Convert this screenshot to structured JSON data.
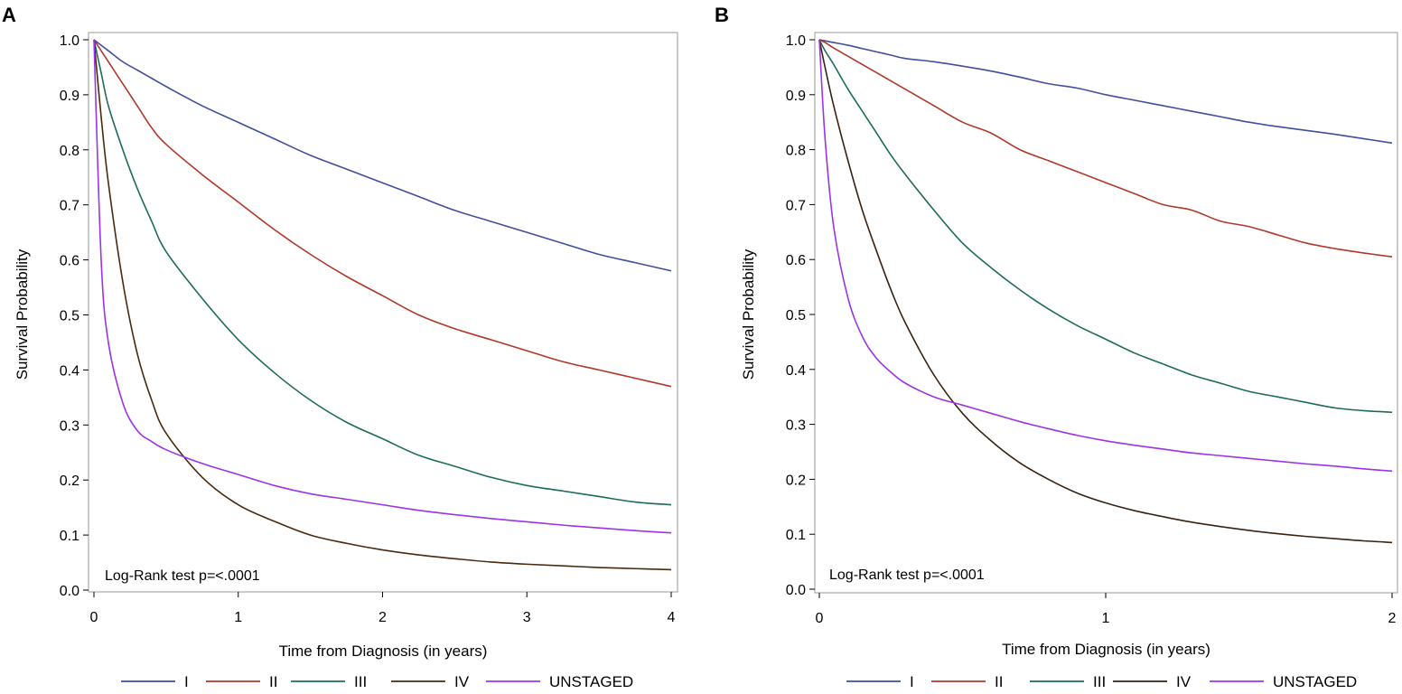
{
  "chart_data": [
    {
      "type": "line",
      "panel": "A",
      "title": "",
      "xlabel": "Time from Diagnosis (in years)",
      "ylabel": "Survival Probability",
      "xlim": [
        0,
        4
      ],
      "ylim": [
        0,
        1
      ],
      "xticks": [
        "0",
        "1",
        "2",
        "3",
        "4"
      ],
      "yticks": [
        "0.0",
        "0.1",
        "0.2",
        "0.3",
        "0.4",
        "0.5",
        "0.6",
        "0.7",
        "0.8",
        "0.9",
        "1.0"
      ],
      "annotation": "Log-Rank test p=<.0001",
      "x": [
        0,
        0.05,
        0.1,
        0.2,
        0.3,
        0.4,
        0.5,
        0.75,
        1,
        1.25,
        1.5,
        1.75,
        2,
        2.25,
        2.5,
        2.75,
        3,
        3.25,
        3.5,
        3.75,
        4
      ],
      "series": [
        {
          "name": "I",
          "color": "#3f4f9b",
          "values": [
            1.0,
            0.99,
            0.98,
            0.96,
            0.945,
            0.93,
            0.915,
            0.88,
            0.85,
            0.82,
            0.79,
            0.765,
            0.74,
            0.715,
            0.69,
            0.67,
            0.65,
            0.63,
            0.61,
            0.595,
            0.58
          ]
        },
        {
          "name": "II",
          "color": "#b0382a",
          "values": [
            1.0,
            0.98,
            0.96,
            0.92,
            0.88,
            0.84,
            0.81,
            0.755,
            0.705,
            0.655,
            0.61,
            0.57,
            0.535,
            0.5,
            0.475,
            0.455,
            0.435,
            0.415,
            0.4,
            0.385,
            0.37
          ]
        },
        {
          "name": "III",
          "color": "#1e6b5c",
          "values": [
            1.0,
            0.94,
            0.88,
            0.8,
            0.73,
            0.67,
            0.615,
            0.53,
            0.455,
            0.395,
            0.345,
            0.305,
            0.275,
            0.245,
            0.225,
            0.205,
            0.19,
            0.18,
            0.17,
            0.16,
            0.155
          ]
        },
        {
          "name": "IV",
          "color": "#4a2a0e",
          "values": [
            1.0,
            0.86,
            0.74,
            0.56,
            0.43,
            0.345,
            0.285,
            0.205,
            0.155,
            0.125,
            0.1,
            0.085,
            0.073,
            0.064,
            0.057,
            0.051,
            0.047,
            0.044,
            0.041,
            0.039,
            0.037
          ]
        },
        {
          "name": "UNSTAGED",
          "color": "#9b34e8",
          "values": [
            1.0,
            0.6,
            0.45,
            0.34,
            0.29,
            0.27,
            0.255,
            0.23,
            0.21,
            0.19,
            0.175,
            0.165,
            0.155,
            0.145,
            0.137,
            0.13,
            0.124,
            0.118,
            0.113,
            0.108,
            0.104
          ]
        }
      ]
    },
    {
      "type": "line",
      "panel": "B",
      "title": "",
      "xlabel": "Time from Diagnosis (in years)",
      "ylabel": "Survival Probability",
      "xlim": [
        0,
        2
      ],
      "ylim": [
        0,
        1
      ],
      "xticks": [
        "0",
        "1",
        "2"
      ],
      "yticks": [
        "0.0",
        "0.1",
        "0.2",
        "0.3",
        "0.4",
        "0.5",
        "0.6",
        "0.7",
        "0.8",
        "0.9",
        "1.0"
      ],
      "annotation": "Log-Rank test p=<.0001",
      "x": [
        0,
        0.02,
        0.05,
        0.1,
        0.15,
        0.2,
        0.25,
        0.3,
        0.4,
        0.5,
        0.6,
        0.7,
        0.8,
        0.9,
        1.0,
        1.1,
        1.2,
        1.3,
        1.4,
        1.5,
        1.6,
        1.7,
        1.8,
        1.9,
        2.0
      ],
      "series": [
        {
          "name": "I",
          "color": "#3f4f9b",
          "values": [
            1.0,
            0.998,
            0.995,
            0.99,
            0.984,
            0.978,
            0.972,
            0.966,
            0.96,
            0.952,
            0.943,
            0.932,
            0.92,
            0.912,
            0.9,
            0.89,
            0.88,
            0.87,
            0.86,
            0.85,
            0.842,
            0.835,
            0.828,
            0.82,
            0.812
          ]
        },
        {
          "name": "II",
          "color": "#b0382a",
          "values": [
            1.0,
            0.995,
            0.985,
            0.97,
            0.955,
            0.94,
            0.925,
            0.91,
            0.88,
            0.85,
            0.83,
            0.8,
            0.78,
            0.76,
            0.74,
            0.72,
            0.7,
            0.69,
            0.67,
            0.66,
            0.645,
            0.63,
            0.62,
            0.612,
            0.605
          ]
        },
        {
          "name": "III",
          "color": "#1e6b5c",
          "values": [
            1.0,
            0.98,
            0.955,
            0.91,
            0.87,
            0.83,
            0.79,
            0.755,
            0.69,
            0.63,
            0.585,
            0.545,
            0.51,
            0.48,
            0.455,
            0.43,
            0.41,
            0.39,
            0.375,
            0.36,
            0.35,
            0.34,
            0.33,
            0.325,
            0.322
          ]
        },
        {
          "name": "IV",
          "color": "#3a2210",
          "values": [
            1.0,
            0.95,
            0.88,
            0.78,
            0.69,
            0.615,
            0.545,
            0.485,
            0.39,
            0.32,
            0.27,
            0.23,
            0.2,
            0.175,
            0.157,
            0.143,
            0.132,
            0.122,
            0.114,
            0.107,
            0.101,
            0.096,
            0.092,
            0.088,
            0.085
          ]
        },
        {
          "name": "UNSTAGED",
          "color": "#9b34e8",
          "values": [
            1.0,
            0.82,
            0.66,
            0.53,
            0.46,
            0.42,
            0.395,
            0.375,
            0.35,
            0.335,
            0.32,
            0.305,
            0.292,
            0.28,
            0.27,
            0.262,
            0.255,
            0.248,
            0.243,
            0.238,
            0.233,
            0.228,
            0.224,
            0.219,
            0.215
          ]
        }
      ]
    }
  ]
}
